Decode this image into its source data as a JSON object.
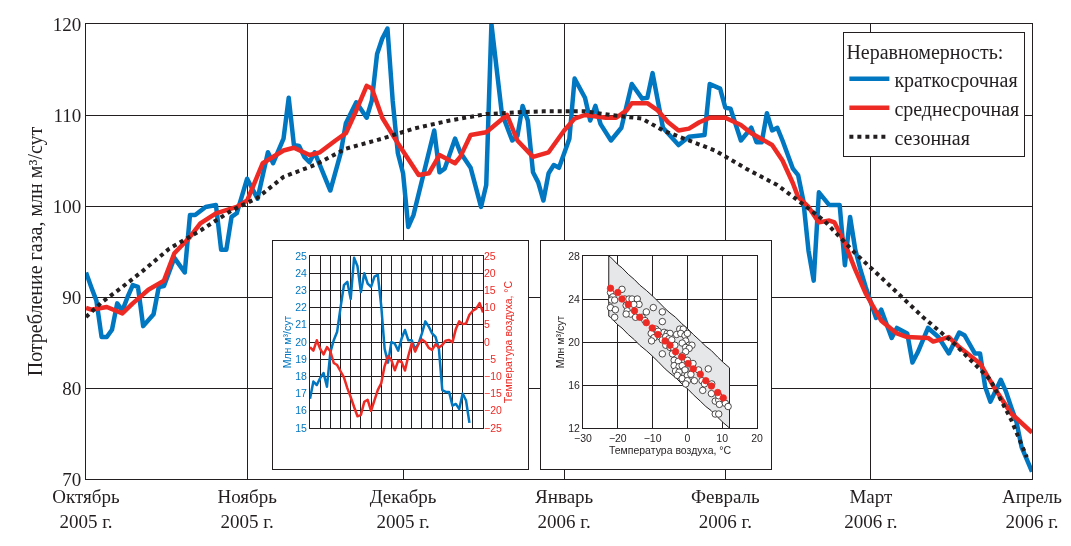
{
  "chart_data": [
    {
      "type": "line",
      "ylabel": "Потребление газа, млн м³/сут",
      "xlim": [
        "2005-10-01",
        "2006-04-01"
      ],
      "xticks": [
        {
          "value": "2005-10-01",
          "label": "Октябрь\n2005 г."
        },
        {
          "value": "2005-11-01",
          "label": "Ноябрь\n2005 г."
        },
        {
          "value": "2005-12-01",
          "label": "Декабрь\n2005 г."
        },
        {
          "value": "2006-01-01",
          "label": "Январь\n2006 г."
        },
        {
          "value": "2006-02-01",
          "label": "Февраль\n2006 г."
        },
        {
          "value": "2006-03-01",
          "label": "Март\n2006 г."
        },
        {
          "value": "2006-04-01",
          "label": "Апрель\n2006 г."
        }
      ],
      "ylim": [
        70,
        120
      ],
      "yticks": [
        70,
        80,
        90,
        100,
        110,
        120
      ],
      "grid": true,
      "legend": "top right",
      "legend_title": "Неравномерность:",
      "series": [
        {
          "name": "краткосрочная",
          "color": "#0077c0",
          "line_style": "solid",
          "x": [
            "2005-10-01",
            "2005-10-02",
            "2005-10-03",
            "2005-10-04",
            "2005-10-05",
            "2005-10-06",
            "2005-10-07",
            "2005-10-08",
            "2005-10-09",
            "2005-10-10",
            "2005-10-11",
            "2005-10-12",
            "2005-10-14",
            "2005-10-15",
            "2005-10-16",
            "2005-10-18",
            "2005-10-20",
            "2005-10-21",
            "2005-10-22",
            "2005-10-24",
            "2005-10-26",
            "2005-10-27",
            "2005-10-28",
            "2005-10-29",
            "2005-10-30",
            "2005-11-01",
            "2005-11-03",
            "2005-11-05",
            "2005-11-06",
            "2005-11-08",
            "2005-11-09",
            "2005-11-10",
            "2005-11-11",
            "2005-11-12",
            "2005-11-13",
            "2005-11-14",
            "2005-11-17",
            "2005-11-19",
            "2005-11-20",
            "2005-11-22",
            "2005-11-24",
            "2005-11-25",
            "2005-11-26",
            "2005-11-27",
            "2005-11-28",
            "2005-11-29",
            "2005-11-30",
            "2005-12-01",
            "2005-12-02",
            "2005-12-03",
            "2005-12-07",
            "2005-12-08",
            "2005-12-09",
            "2005-12-11",
            "2005-12-12",
            "2005-12-14",
            "2005-12-16",
            "2005-12-17",
            "2005-12-18",
            "2005-12-20",
            "2005-12-22",
            "2005-12-23",
            "2005-12-24",
            "2005-12-25",
            "2005-12-26",
            "2005-12-27",
            "2005-12-28",
            "2005-12-29",
            "2005-12-30",
            "2005-12-31",
            "2006-01-02",
            "2006-01-03",
            "2006-01-05",
            "2006-01-06",
            "2006-01-07",
            "2006-01-08",
            "2006-01-10",
            "2006-01-12",
            "2006-01-14",
            "2006-01-16",
            "2006-01-17",
            "2006-01-18",
            "2006-01-20",
            "2006-01-23",
            "2006-01-25",
            "2006-01-28",
            "2006-01-29",
            "2006-01-31",
            "2006-02-01",
            "2006-02-02",
            "2006-02-04",
            "2006-02-06",
            "2006-02-07",
            "2006-02-08",
            "2006-02-09",
            "2006-02-10",
            "2006-02-11",
            "2006-02-12",
            "2006-02-14",
            "2006-02-15",
            "2006-02-16",
            "2006-02-17",
            "2006-02-18",
            "2006-02-19",
            "2006-02-21",
            "2006-02-23",
            "2006-02-24",
            "2006-02-25",
            "2006-02-26",
            "2006-02-27",
            "2006-02-28",
            "2006-03-02",
            "2006-03-03",
            "2006-03-05",
            "2006-03-06",
            "2006-03-08",
            "2006-03-09",
            "2006-03-10",
            "2006-03-12",
            "2006-03-14",
            "2006-03-16",
            "2006-03-18",
            "2006-03-19",
            "2006-03-21",
            "2006-03-22",
            "2006-03-23",
            "2006-03-24",
            "2006-03-26",
            "2006-03-27",
            "2006-03-28",
            "2006-03-29",
            "2006-03-30",
            "2006-04-01"
          ],
          "values": [
            92.7,
            91.1,
            89.6,
            85.6,
            85.6,
            86.4,
            89.3,
            88.5,
            90.0,
            91.3,
            91.1,
            86.8,
            88.1,
            91.1,
            91.2,
            94.3,
            92.7,
            99.0,
            99.0,
            99.9,
            100.1,
            95.2,
            95.2,
            98.8,
            99.2,
            103.0,
            100.8,
            105.9,
            104.7,
            107.4,
            111.9,
            106.7,
            106.6,
            105.4,
            104.8,
            105.9,
            101.7,
            105.8,
            109.1,
            111.4,
            109.7,
            111.6,
            116.7,
            118.4,
            119.5,
            111.6,
            105.8,
            103.6,
            97.7,
            99.0,
            108.3,
            103.7,
            104.1,
            107.4,
            105.9,
            104.2,
            99.9,
            102.3,
            120.0,
            110.2,
            107.2,
            107.7,
            111.0,
            109.4,
            103.7,
            102.6,
            100.6,
            103.6,
            104.5,
            104.2,
            107.4,
            114.0,
            111.9,
            109.4,
            111.0,
            109.0,
            107.2,
            108.6,
            113.4,
            111.8,
            111.9,
            114.6,
            108.6,
            106.7,
            107.6,
            107.8,
            113.4,
            112.9,
            110.8,
            110.7,
            107.2,
            108.6,
            107.0,
            107.0,
            110.2,
            108.3,
            108.6,
            107.2,
            104.1,
            103.4,
            100.6,
            95.1,
            91.8,
            101.5,
            100.1,
            100.1,
            93.5,
            98.8,
            95.2,
            93.0,
            91.1,
            87.7,
            88.6,
            85.5,
            86.6,
            86.0,
            82.8,
            83.9,
            86.6,
            85.6,
            83.8,
            86.1,
            85.8,
            83.8,
            83.8,
            80.1,
            78.5,
            80.9,
            79.6,
            77.9,
            76.3,
            73.5,
            70.8
          ]
        },
        {
          "name": "среднесрочная",
          "color": "#ee2a24",
          "line_style": "solid",
          "x": [
            "2005-10-01",
            "2005-10-02",
            "2005-10-05",
            "2005-10-08",
            "2005-10-10",
            "2005-10-13",
            "2005-10-16",
            "2005-10-18",
            "2005-10-21",
            "2005-10-23",
            "2005-10-26",
            "2005-10-30",
            "2005-11-01",
            "2005-11-04",
            "2005-11-08",
            "2005-11-10",
            "2005-11-13",
            "2005-11-15",
            "2005-11-18",
            "2005-11-20",
            "2005-11-22",
            "2005-11-24",
            "2005-11-25",
            "2005-11-27",
            "2005-11-30",
            "2005-12-04",
            "2005-12-06",
            "2005-12-08",
            "2005-12-11",
            "2005-12-12",
            "2005-12-14",
            "2005-12-17",
            "2005-12-21",
            "2005-12-23",
            "2005-12-26",
            "2005-12-29",
            "2006-01-01",
            "2006-01-03",
            "2006-01-05",
            "2006-01-09",
            "2006-01-11",
            "2006-01-13",
            "2006-01-14",
            "2006-01-17",
            "2006-01-19",
            "2006-01-21",
            "2006-01-23",
            "2006-01-25",
            "2006-01-27",
            "2006-01-29",
            "2006-02-01",
            "2006-02-04",
            "2006-02-06",
            "2006-02-10",
            "2006-02-12",
            "2006-02-14",
            "2006-02-15",
            "2006-02-17",
            "2006-02-19",
            "2006-02-21",
            "2006-02-22",
            "2006-02-24",
            "2006-02-26",
            "2006-02-28",
            "2006-03-03",
            "2006-03-06",
            "2006-03-08",
            "2006-03-12",
            "2006-03-13",
            "2006-03-16",
            "2006-03-18",
            "2006-03-22",
            "2006-03-25",
            "2006-03-28",
            "2006-04-01"
          ],
          "values": [
            88.8,
            88.6,
            88.9,
            88.2,
            89.3,
            90.8,
            91.8,
            94.8,
            96.6,
            98.1,
            99.2,
            99.9,
            100.6,
            104.7,
            106.1,
            106.4,
            105.6,
            105.9,
            107.2,
            108.0,
            110.5,
            113.2,
            112.9,
            109.7,
            106.9,
            103.4,
            103.6,
            105.6,
            104.7,
            105.4,
            107.8,
            108.1,
            110.0,
            107.2,
            105.4,
            105.9,
            108.3,
            109.6,
            110.0,
            109.7,
            109.7,
            110.5,
            111.3,
            111.3,
            110.5,
            109.2,
            108.3,
            108.5,
            109.2,
            109.7,
            109.7,
            108.9,
            108.0,
            106.7,
            105.0,
            102.5,
            101.0,
            99.9,
            98.2,
            98.4,
            98.2,
            95.9,
            93.0,
            90.4,
            87.4,
            86.0,
            85.6,
            85.5,
            85.1,
            85.6,
            84.5,
            82.7,
            79.8,
            77.2,
            75.1
          ]
        },
        {
          "name": "сезонная",
          "color": "#231f20",
          "line_style": "dotted",
          "x": [
            "2005-10-01",
            "2005-10-04",
            "2005-10-08",
            "2005-10-12",
            "2005-10-17",
            "2005-10-23",
            "2005-10-29",
            "2005-11-03",
            "2005-11-08",
            "2005-11-14",
            "2005-11-20",
            "2005-11-27",
            "2005-12-03",
            "2005-12-10",
            "2005-12-17",
            "2005-12-23",
            "2005-12-28",
            "2006-01-05",
            "2006-01-10",
            "2006-01-16",
            "2006-01-20",
            "2006-01-30",
            "2006-02-05",
            "2006-02-11",
            "2006-02-15",
            "2006-02-20",
            "2006-02-26",
            "2006-03-04",
            "2006-03-11",
            "2006-03-17",
            "2006-03-24",
            "2006-03-28",
            "2006-03-31"
          ],
          "values": [
            87.8,
            89.4,
            91.1,
            92.9,
            95.3,
            97.3,
            99.5,
            100.9,
            103.2,
            104.5,
            106.3,
            107.4,
            108.5,
            109.4,
            110.1,
            110.3,
            110.4,
            110.4,
            110.0,
            109.6,
            108.3,
            106.1,
            104.1,
            102.3,
            100.6,
            98.4,
            94.8,
            91.6,
            87.8,
            84.9,
            80.9,
            76.5,
            72.4
          ]
        }
      ]
    },
    {
      "type": "line",
      "categories": [
        null,
        null,
        null,
        null,
        null,
        null,
        null,
        null,
        null,
        null,
        null,
        null,
        null,
        null,
        null,
        null,
        null,
        null,
        null,
        null,
        null,
        null,
        null,
        null,
        null,
        null,
        null,
        null,
        null,
        null,
        null,
        null,
        null,
        null,
        null,
        null,
        null,
        null,
        null,
        null,
        null,
        null,
        null,
        null,
        null,
        null,
        null,
        null,
        null,
        null,
        null,
        null
      ],
      "ylabel": "Млн м³/сут",
      "y2label": "Температура воздуха, °С",
      "ylim": [
        15,
        25
      ],
      "yticks": [
        15,
        16,
        17,
        18,
        19,
        20,
        21,
        22,
        23,
        24,
        25
      ],
      "y2lim": [
        -25,
        25
      ],
      "y2ticks": [
        -25,
        -20,
        -15,
        -10,
        -5,
        0,
        5,
        10,
        15,
        20,
        25
      ],
      "grid": true,
      "tick_labels": "y",
      "series": [
        {
          "color": "#0077c0",
          "values": [
            16.7,
            17.7,
            17.5,
            17.9,
            18.2,
            17.4,
            19.4,
            20.1,
            20.6,
            22.0,
            23.3,
            23.5,
            22.5,
            24.9,
            24.4,
            22.9,
            24.0,
            23.4,
            23.2,
            23.8,
            23.9,
            22.1,
            19.6,
            18.8,
            20.0,
            19.9,
            19.5,
            20.2,
            20.7,
            20.1,
            20.1,
            19.6,
            19.9,
            20.5,
            21.2,
            20.9,
            20.5,
            20.3,
            19.6,
            17.2,
            17.1,
            17.1,
            16.3,
            16.4,
            16.1,
            17.0,
            16.6,
            15.3,
            null,
            null,
            null,
            null
          ]
        },
        {
          "color": "#ee2a24",
          "axis": "y2",
          "values": [
            -1.5,
            -2.5,
            0.5,
            -2.0,
            -3.6,
            -1.5,
            -2.7,
            -6.1,
            -6.7,
            -8.5,
            -10.3,
            -13.4,
            -16.0,
            -18.9,
            -21.6,
            -21.2,
            -17.4,
            -16.8,
            -20.0,
            -17.0,
            -13.9,
            -12.0,
            -7.0,
            -4.1,
            -5.3,
            -8.2,
            -5.5,
            -5.8,
            -8.3,
            -4.0,
            -0.4,
            -2.8,
            -0.5,
            0.7,
            0.0,
            -1.7,
            -2.3,
            -0.7,
            -1.6,
            -0.9,
            0.4,
            0.6,
            -0.1,
            3.8,
            6.0,
            5.2,
            5.4,
            7.9,
            9.1,
            9.7,
            11.3,
            8.6
          ]
        }
      ]
    },
    {
      "type": "scatter",
      "xlabel": "Температура воздуха, °С",
      "ylabel": "Млн м³/сут",
      "xlim": [
        -30,
        20
      ],
      "xticks": [
        -30,
        -20,
        -10,
        0,
        10,
        20
      ],
      "ylim": [
        12,
        28
      ],
      "yticks": [
        12,
        16,
        20,
        24,
        28
      ],
      "grid": true,
      "marker": "circle",
      "series": [
        {
          "color": "#ffffff",
          "x": [
            -22.1,
            -21.4,
            -21.8,
            -20.9,
            -22.1,
            -20.7,
            -20.9,
            -18.8,
            -18.0,
            -17.6,
            -16.8,
            -15.9,
            -14.4,
            -13.9,
            -15.4,
            -17.3,
            -16.3,
            -17.6,
            -14.9,
            -13.0,
            -11.8,
            -12.2,
            -9.8,
            -7.2,
            -7.2,
            -9.1,
            -10.4,
            -9.6,
            -10.3,
            -8.4,
            -7.9,
            -7.2,
            -6.7,
            -5.8,
            -5.0,
            -6.2,
            -5.3,
            -4.5,
            -6.2,
            -5.0,
            -4.1,
            -3.6,
            -3.1,
            -2.2,
            -1.2,
            -1.9,
            -0.7,
            0.0,
            -0.5,
            -1.5,
            0.5,
            -0.5,
            1.3,
            0.5,
            -0.5,
            -1.5,
            -7.2,
            -4.3,
            -3.8,
            -2.6,
            -3.8,
            -2.4,
            -3.4,
            -1.5,
            -0.7,
            -2.4,
            -2.9,
            -1.5,
            0.0,
            0.0,
            -0.5,
            1.3,
            1.0,
            2.0,
            3.2,
            4.2,
            4.9,
            4.4,
            6.0,
            7.0,
            6.9,
            8.0,
            9.0,
            9.2,
            9.0,
            8.0,
            9.0,
            10.9,
            11.7,
            0.0,
            1.6
          ],
          "values": [
            24.6,
            24.2,
            23.9,
            23.9,
            23.2,
            23.0,
            22.3,
            24.9,
            24.0,
            23.4,
            24.0,
            24.0,
            24.0,
            23.5,
            23.5,
            22.9,
            22.6,
            22.6,
            22.3,
            22.3,
            22.8,
            22.0,
            23.2,
            22.8,
            21.9,
            21.2,
            20.8,
            20.4,
            20.1,
            21.0,
            20.5,
            20.2,
            20.9,
            20.8,
            20.8,
            20.5,
            20.3,
            20.2,
            19.7,
            19.5,
            19.5,
            19.7,
            20.7,
            21.2,
            21.2,
            20.8,
            20.6,
            20.8,
            20.1,
            19.9,
            19.7,
            19.5,
            19.7,
            19.4,
            19.1,
            18.7,
            18.9,
            18.9,
            18.3,
            18.2,
            17.8,
            17.7,
            17.3,
            17.8,
            17.4,
            17.2,
            16.9,
            16.6,
            16.9,
            16.4,
            16.1,
            17.5,
            17.0,
            16.4,
            17.4,
            16.4,
            16.1,
            15.5,
            17.5,
            16.1,
            15.2,
            14.5,
            14.6,
            14.2,
            15.0,
            13.3,
            13.3,
            14.3,
            14.0,
            18.3,
            18.0
          ]
        },
        {
          "color": "#ee2a24",
          "x": [
            -22.6,
            -22.1,
            -20.0,
            -18.8,
            -17.0,
            -15.2,
            -13.7,
            -11.8,
            -10.1,
            -8.5,
            -6.4,
            -5.0,
            -3.4,
            -1.6,
            0.2,
            1.7,
            3.7,
            5.3,
            6.9,
            8.7,
            10.3,
            12.1
          ],
          "values": [
            null,
            25.0,
            24.6,
            24.0,
            23.5,
            22.9,
            22.3,
            21.8,
            21.3,
            20.7,
            20.1,
            19.7,
            19.1,
            18.6,
            18.0,
            17.5,
            17.0,
            16.4,
            15.9,
            15.3,
            14.8,
            null
          ],
          "upper": [
            28.0,
            27.9,
            27.2,
            26.9,
            26.3,
            25.8,
            25.3,
            24.8,
            24.3,
            23.8,
            23.1,
            22.7,
            22.3,
            21.7,
            21.2,
            20.7,
            20.1,
            19.6,
            19.2,
            18.6,
            18.1,
            17.6
          ],
          "lower": [
            22.4,
            22.3,
            21.6,
            21.3,
            20.7,
            20.2,
            19.7,
            19.2,
            18.7,
            18.2,
            17.5,
            17.1,
            16.7,
            16.1,
            15.6,
            15.1,
            14.5,
            14.0,
            13.6,
            13.0,
            12.5,
            12.0
          ]
        }
      ]
    }
  ]
}
